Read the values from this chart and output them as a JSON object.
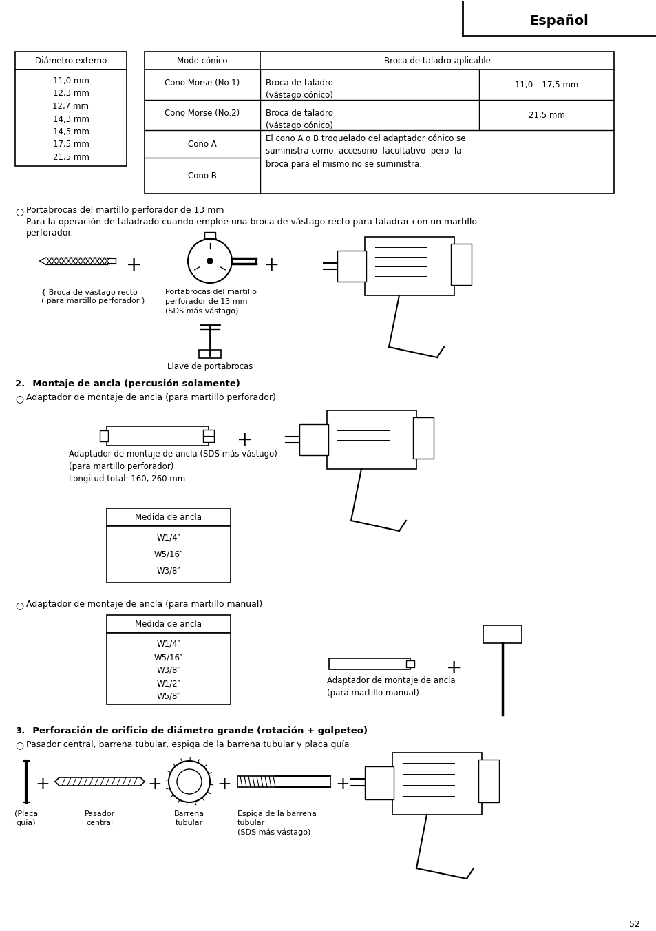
{
  "page_num": "52",
  "header_text": "Español",
  "table1_header": "Diámetro externo",
  "table1_values": [
    "11,0 mm",
    "12,3 mm",
    "12,7 mm",
    "14,3 mm",
    "14,5 mm",
    "17,5 mm",
    "21,5 mm"
  ],
  "table2_col1_header": "Modo cónico",
  "table2_col2_header": "Broca de taladro aplicable",
  "t2r1c1": "Cono Morse (No.1)",
  "t2r1c2": "Broca de taladro\n(vástago cónico)",
  "t2r1c3": "11,0 – 17,5 mm",
  "t2r2c1": "Cono Morse (No.2)",
  "t2r2c2": "Broca de taladro\n(vástago cónico)",
  "t2r2c3": "21,5 mm",
  "t2r3c1": "Cono A",
  "t2r4c1": "Cono B",
  "t2_merged": "El cono A o B troquelado del adaptador cónico se\nsuministra como  accesorio  facultativo  pero  la\nbroca para el mismo no se suministra.",
  "s1_head": "Portabrocas del martillo perforador de 13 mm",
  "s1_body1": "Para la operación de taladrado cuando emplee una broca de vástago recto para taladrar con un martillo",
  "s1_body2": "perforador.",
  "s1_lbl_left": "{ Broca de vástago recto",
  "s1_lbl_left2": "( para martillo perforador )",
  "s1_lbl_mid": "Portabrocas del martillo\nperforador de 13 mm\n(SDS más vástago)",
  "s1_lbl_key": "Llave de portabrocas",
  "s2_head": "Montaje de ancla (percusión solamente)",
  "s2_bullet": "Adaptador de montaje de ancla (para martillo perforador)",
  "s2_lbl": "Adaptador de montaje de ancla (SDS más vástago)\n(para martillo perforador)\nLongitud total: 160, 260 mm",
  "t3_header": "Medida de ancla",
  "t3_values": [
    "W1/4″",
    "W5/16″",
    "W3/8″"
  ],
  "s3_bullet": "Adaptador de montaje de ancla (para martillo manual)",
  "t4_header": "Medida de ancla",
  "t4_values": [
    "W1/4″",
    "W5/16″",
    "W3/8″",
    "W1/2″",
    "W5/8″"
  ],
  "s3_lbl": "Adaptador de montaje de ancla\n(para martillo manual)",
  "s4_head": "Perforación de orificio de diámetro grande (rotación + golpeteo)",
  "s4_bullet": "Pasador central, barrena tubular, espiga de la barrena tubular y placa guía",
  "s4_la": "(Placa\nguia)",
  "s4_lb": "Pasador\ncentral",
  "s4_lc": "Barrena\ntubular",
  "s4_ld": "Espiga de la barrena\ntubular\n(SDS más vástago)"
}
